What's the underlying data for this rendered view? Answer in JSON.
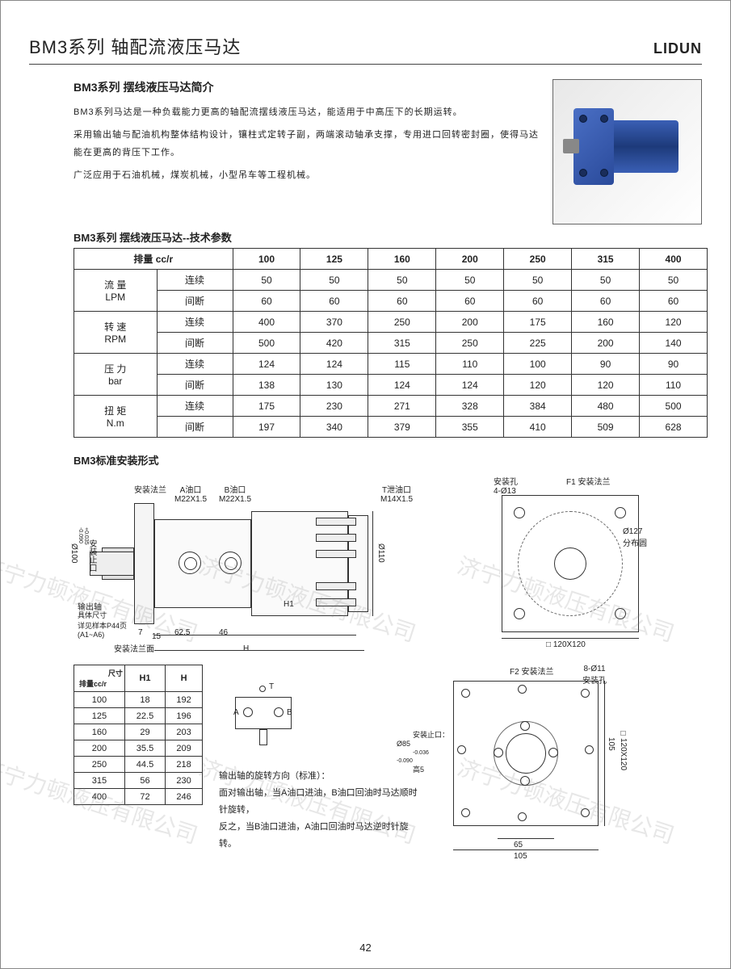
{
  "header": {
    "title": "BM3系列 轴配流液压马达",
    "brand": "LIDUN"
  },
  "intro": {
    "heading": "BM3系列 摆线液压马达简介",
    "p1": "BM3系列马达是一种负载能力更高的轴配流摆线液压马达，能适用于中高压下的长期运转。",
    "p2": "采用输出轴与配油机构整体结构设计，镶柱式定转子副，两端滚动轴承支撑，专用进口回转密封圈，使得马达能在更高的背压下工作。",
    "p3": "广泛应用于石油机械，煤炭机械，小型吊车等工程机械。"
  },
  "spec_table": {
    "caption": "BM3系列 摆线液压马达--技术参数",
    "col_header": "排量 cc/r",
    "columns": [
      "100",
      "125",
      "160",
      "200",
      "250",
      "315",
      "400"
    ],
    "groups": [
      {
        "label": "流 量",
        "unit": "LPM",
        "rows": [
          {
            "mode": "连续",
            "vals": [
              "50",
              "50",
              "50",
              "50",
              "50",
              "50",
              "50"
            ]
          },
          {
            "mode": "间断",
            "vals": [
              "60",
              "60",
              "60",
              "60",
              "60",
              "60",
              "60"
            ]
          }
        ]
      },
      {
        "label": "转 速",
        "unit": "RPM",
        "rows": [
          {
            "mode": "连续",
            "vals": [
              "400",
              "370",
              "250",
              "200",
              "175",
              "160",
              "120"
            ]
          },
          {
            "mode": "间断",
            "vals": [
              "500",
              "420",
              "315",
              "250",
              "225",
              "200",
              "140"
            ]
          }
        ]
      },
      {
        "label": "压 力",
        "unit": "bar",
        "rows": [
          {
            "mode": "连续",
            "vals": [
              "124",
              "124",
              "115",
              "110",
              "100",
              "90",
              "90"
            ]
          },
          {
            "mode": "间断",
            "vals": [
              "138",
              "130",
              "124",
              "124",
              "120",
              "120",
              "110"
            ]
          }
        ]
      },
      {
        "label": "扭 矩",
        "unit": "N.m",
        "rows": [
          {
            "mode": "连续",
            "vals": [
              "175",
              "230",
              "271",
              "328",
              "384",
              "480",
              "500"
            ]
          },
          {
            "mode": "间断",
            "vals": [
              "197",
              "340",
              "379",
              "355",
              "410",
              "509",
              "628"
            ]
          }
        ]
      }
    ]
  },
  "mounting": {
    "title": "BM3标准安装形式",
    "labels": {
      "mount_flange": "安装法兰",
      "port_a": "A油口\nM22X1.5",
      "port_b": "B油口\nM22X1.5",
      "port_t": "T泄油口\nM14X1.5",
      "output_shaft": "输出轴",
      "shaft_note": "具体尺寸\n详见样本P44页\n(A1~A6)",
      "flange_face": "安装法兰面",
      "flange_dia": "Ø100",
      "flange_tol": "+0.035\n-0.090",
      "flange_dia_label": "安装止口",
      "dia110": "Ø110",
      "d7": "7",
      "d15": "15",
      "d62_5": "62.5",
      "d46": "46",
      "H1": "H1",
      "H": "H",
      "mount_hole": "安装孔\n4-Ø13",
      "f1": "F1 安装法兰",
      "dist_circle": "Ø127\n分布圆",
      "sq120": "□ 120X120",
      "f2": "F2 安装法兰",
      "hole8": "8-Ø11\n安装孔",
      "stop_dia": "安装止口：\nØ85 ",
      "stop_tol": "-0.036\n-0.090",
      "stop_h": "高5",
      "d65": "65",
      "d105": "105",
      "sq120b": "□120X120"
    }
  },
  "dim_table": {
    "h_size": "尺寸",
    "h_disp": "排量cc/r",
    "cols": [
      "H1",
      "H"
    ],
    "rows": [
      [
        "100",
        "18",
        "192"
      ],
      [
        "125",
        "22.5",
        "196"
      ],
      [
        "160",
        "29",
        "203"
      ],
      [
        "200",
        "35.5",
        "209"
      ],
      [
        "250",
        "44.5",
        "218"
      ],
      [
        "315",
        "56",
        "230"
      ],
      [
        "400",
        "72",
        "246"
      ]
    ]
  },
  "port_schema": {
    "A": "A",
    "B": "B",
    "T": "T"
  },
  "rotation": {
    "heading": "输出轴的旋转方向（标准）：",
    "l1": "面对输出轴，当A油口进油，B油口回油时马达顺时针旋转，",
    "l2": "反之，当B油口进油，A油口回油时马达逆时针旋转。"
  },
  "page_number": "42",
  "watermark": "济宁力顿液压有限公司",
  "colors": {
    "motor_blue": "#2a4a9a",
    "border": "#333333"
  }
}
